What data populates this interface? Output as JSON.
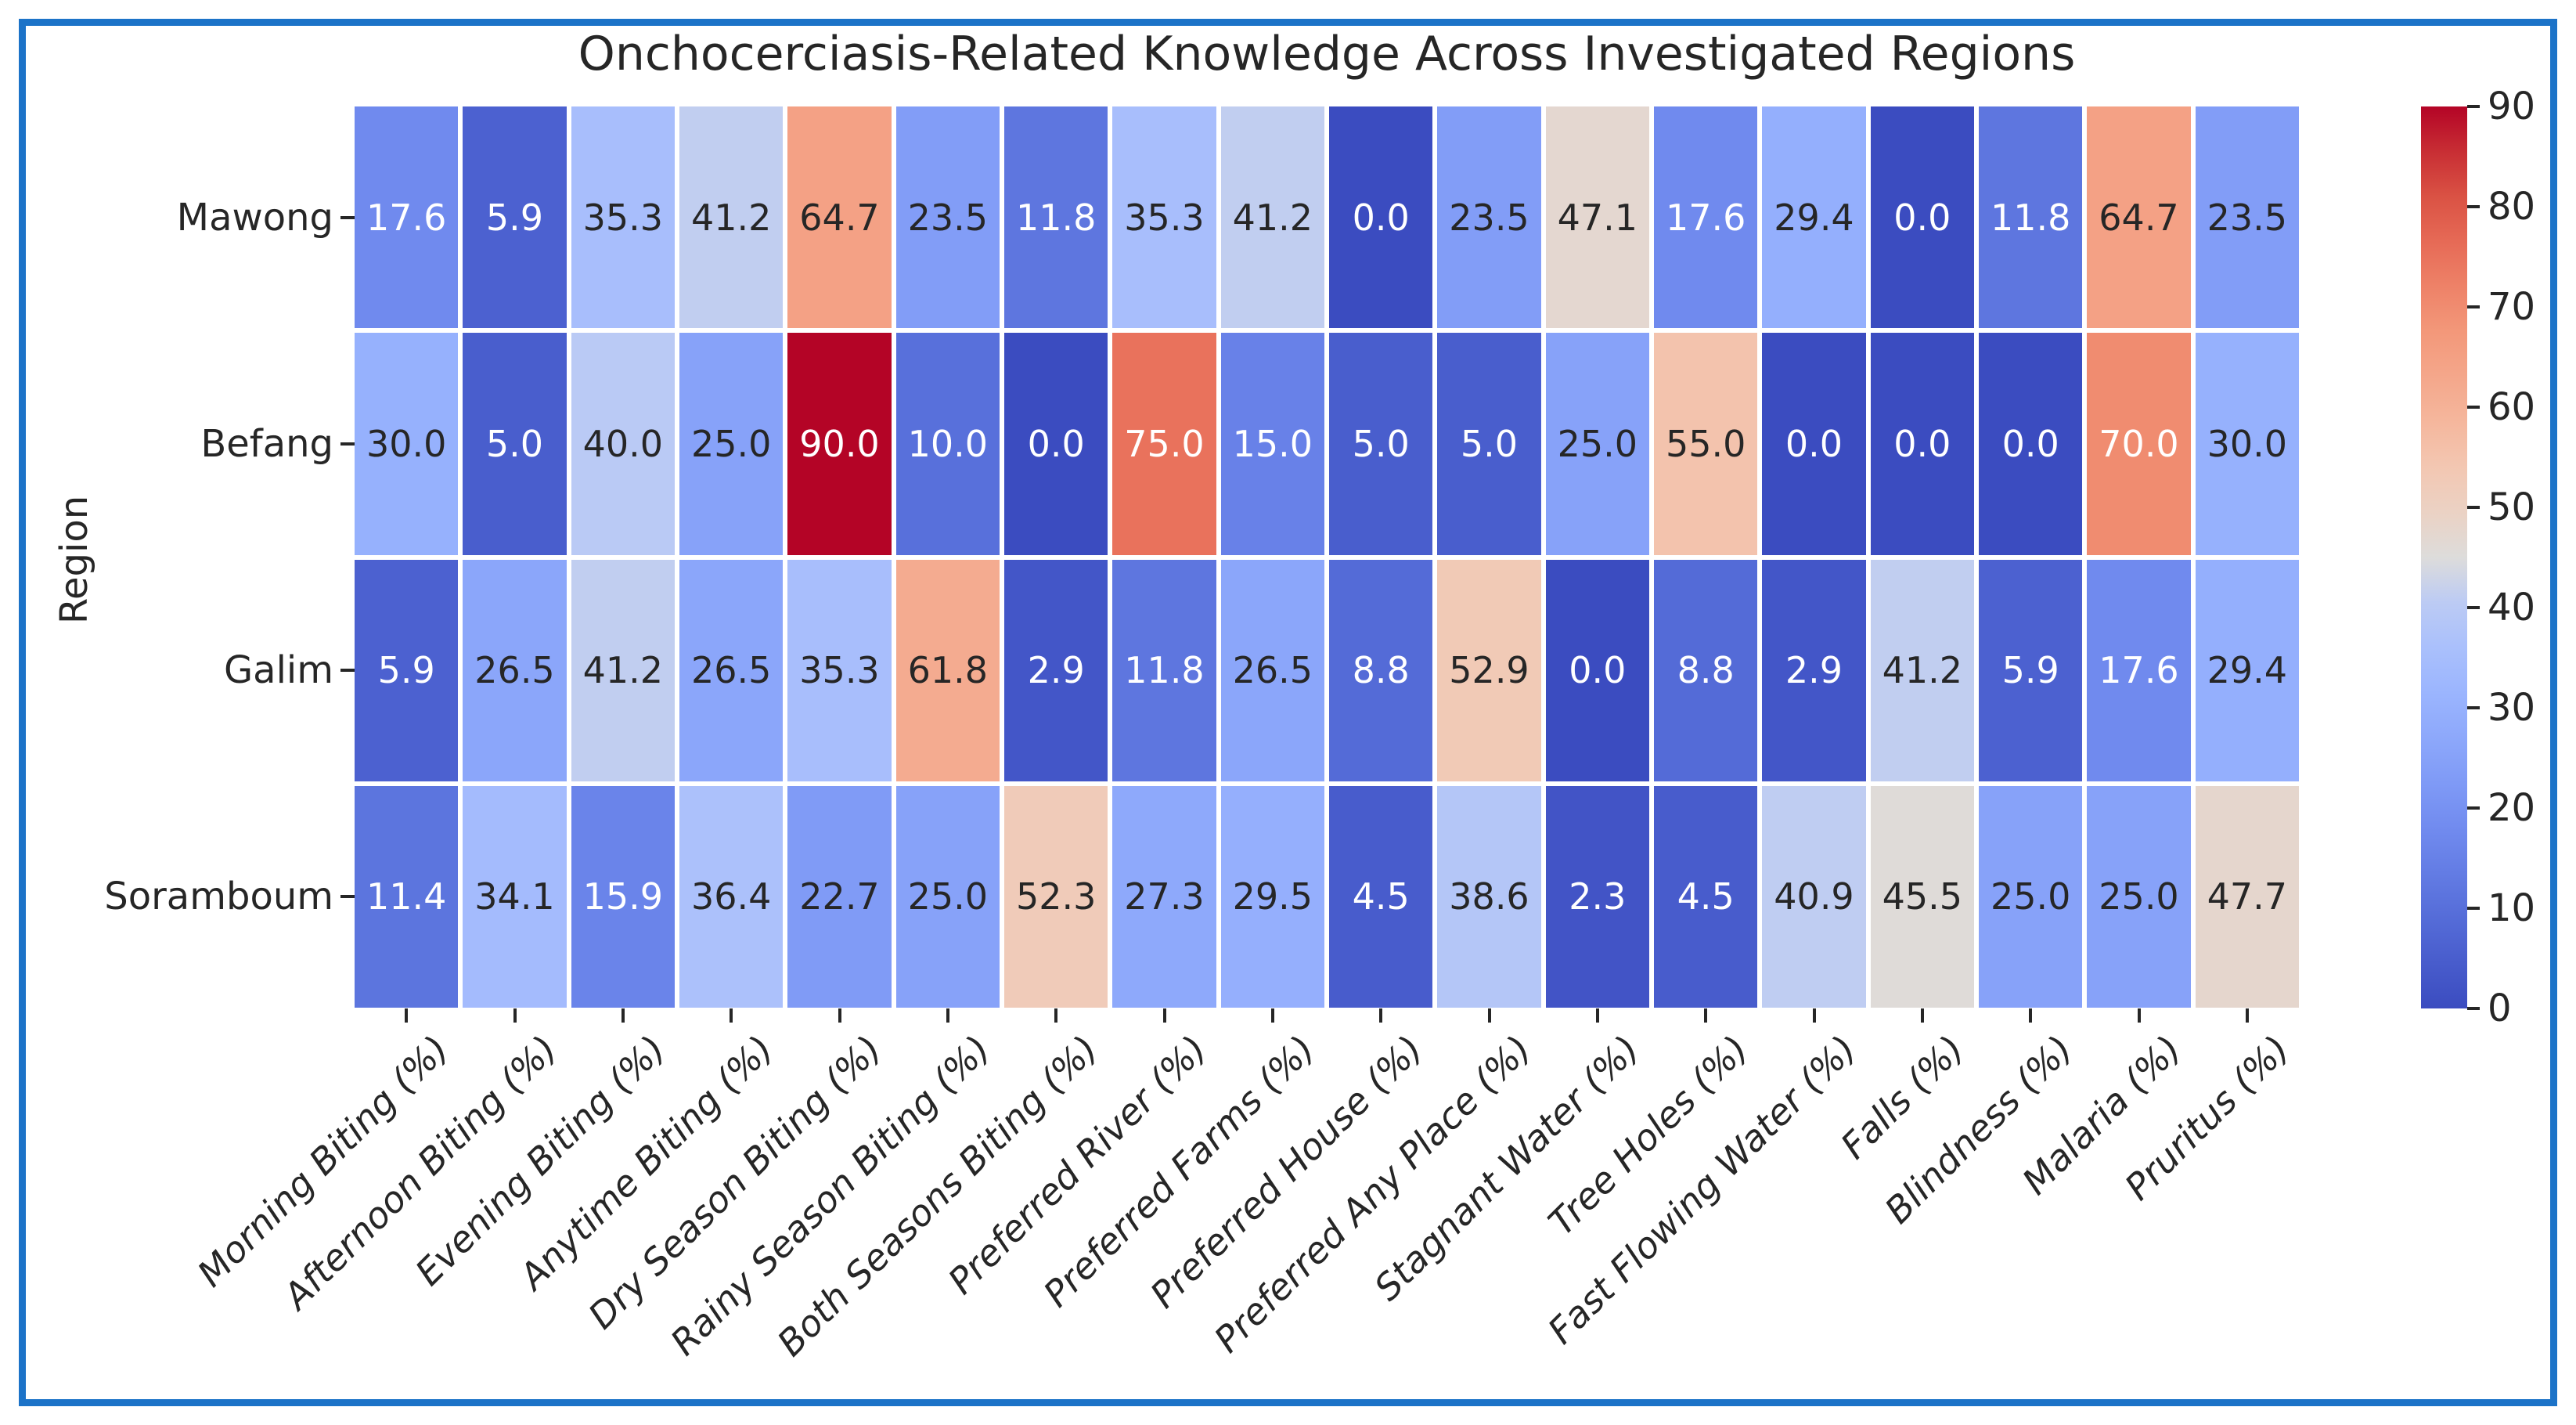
{
  "figure": {
    "border_color": "#1c73c8",
    "background": "#ffffff"
  },
  "chart_data": {
    "type": "heatmap",
    "title": "Onchocerciasis-Related Knowledge Across Investigated Regions",
    "xlabel": "",
    "ylabel": "Region",
    "rows": [
      "Mawong",
      "Befang",
      "Galim",
      "Soramboum"
    ],
    "columns": [
      "Morning Biting (%)",
      "Afternoon Biting (%)",
      "Evening Biting (%)",
      "Anytime Biting (%)",
      "Dry Season Biting (%)",
      "Rainy Season Biting (%)",
      "Both Seasons Biting (%)",
      "Preferred River (%)",
      "Preferred Farms (%)",
      "Preferred House (%)",
      "Preferred Any Place (%)",
      "Stagnant Water (%)",
      "Tree Holes (%)",
      "Fast Flowing Water (%)",
      "Falls (%)",
      "Blindness (%)",
      "Malaria (%)",
      "Pruritus (%)"
    ],
    "values": [
      [
        17.6,
        5.9,
        35.3,
        41.2,
        64.7,
        23.5,
        11.8,
        35.3,
        41.2,
        0.0,
        23.5,
        47.1,
        17.6,
        29.4,
        0.0,
        11.8,
        64.7,
        23.5
      ],
      [
        30.0,
        5.0,
        40.0,
        25.0,
        90.0,
        10.0,
        0.0,
        75.0,
        15.0,
        5.0,
        5.0,
        25.0,
        55.0,
        0.0,
        0.0,
        0.0,
        70.0,
        30.0
      ],
      [
        5.9,
        26.5,
        41.2,
        26.5,
        35.3,
        61.8,
        2.9,
        11.8,
        26.5,
        8.8,
        52.9,
        0.0,
        8.8,
        2.9,
        41.2,
        5.9,
        17.6,
        29.4
      ],
      [
        11.4,
        34.1,
        15.9,
        36.4,
        22.7,
        25.0,
        52.3,
        27.3,
        29.5,
        4.5,
        38.6,
        2.3,
        4.5,
        40.9,
        45.5,
        25.0,
        25.0,
        47.7
      ]
    ],
    "value_decimals": 1,
    "vmin": 0,
    "vmax": 90,
    "colorbar_ticks": [
      0,
      10,
      20,
      30,
      40,
      50,
      60,
      70,
      80,
      90
    ],
    "colormap": "coolwarm",
    "colormap_stops": [
      [
        0.0,
        "#3b4cc0"
      ],
      [
        0.05,
        "#485ccc"
      ],
      [
        0.1,
        "#556cd8"
      ],
      [
        0.15,
        "#637ce4"
      ],
      [
        0.2,
        "#718bef"
      ],
      [
        0.25,
        "#7f9af6"
      ],
      [
        0.3,
        "#8da8fb"
      ],
      [
        0.35,
        "#9bb5fe"
      ],
      [
        0.4,
        "#aac0fc"
      ],
      [
        0.45,
        "#bccbf4"
      ],
      [
        0.5,
        "#dddcdb"
      ],
      [
        0.55,
        "#ebd2c4"
      ],
      [
        0.6,
        "#f3c7b2"
      ],
      [
        0.65,
        "#f5b79d"
      ],
      [
        0.7,
        "#f4a78b"
      ],
      [
        0.75,
        "#f3987a"
      ],
      [
        0.8,
        "#ee8268"
      ],
      [
        0.85,
        "#e66a56"
      ],
      [
        0.9,
        "#da5244"
      ],
      [
        0.95,
        "#c82e34"
      ],
      [
        1.0,
        "#b40426"
      ]
    ],
    "annotation_colors": {
      "light": "#ffffff",
      "dark": "#262626"
    },
    "grid_line_color": "#ffffff",
    "legend_position": "right"
  }
}
